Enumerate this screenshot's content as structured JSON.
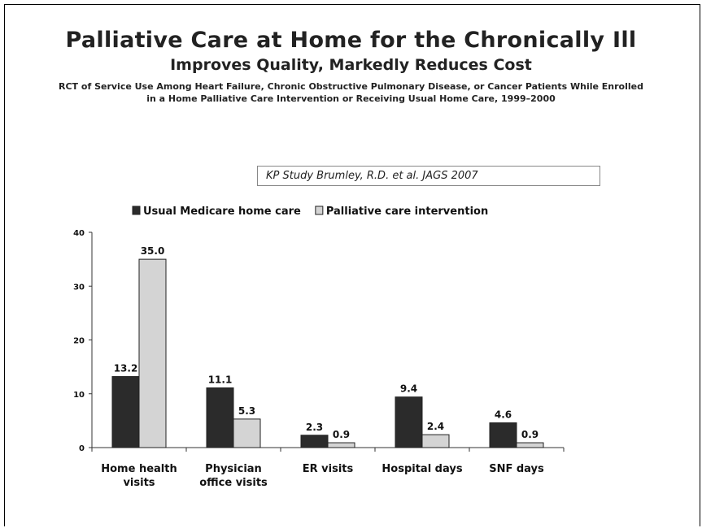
{
  "slide": {
    "title": "Palliative Care at Home for the Chronically Ill",
    "subtitle": "Improves Quality, Markedly Reduces Cost",
    "description": "RCT of Service Use Among Heart Failure, Chronic Obstructive Pulmonary Disease, or Cancer Patients While Enrolled in a Home Palliative Care Intervention or Receiving Usual Home Care, 1999–2000",
    "citation": "KP Study Brumley, R.D. et al. JAGS 2007"
  },
  "chart_data": {
    "type": "bar",
    "categories": [
      [
        "Home health",
        "visits"
      ],
      [
        "Physician",
        "office visits"
      ],
      [
        "ER visits"
      ],
      [
        "Hospital days"
      ],
      [
        "SNF days"
      ]
    ],
    "series": [
      {
        "name": "Usual Medicare home care",
        "values": [
          13.2,
          11.1,
          2.3,
          9.4,
          4.6
        ],
        "color": "#2b2b2b",
        "labels": [
          "13.2",
          "11.1",
          "2.3",
          "9.4",
          "4.6"
        ]
      },
      {
        "name": "Palliative care intervention",
        "values": [
          35.0,
          5.3,
          0.9,
          2.4,
          0.9
        ],
        "color": "#d4d4d4",
        "labels": [
          "35.0",
          "5.3",
          "0.9",
          "2.4",
          "0.9"
        ]
      }
    ],
    "ylim": [
      0,
      40
    ],
    "yticks": [
      0,
      10,
      20,
      30,
      40
    ],
    "legend_position": "top",
    "grid": false,
    "xlabel": "",
    "ylabel": ""
  }
}
